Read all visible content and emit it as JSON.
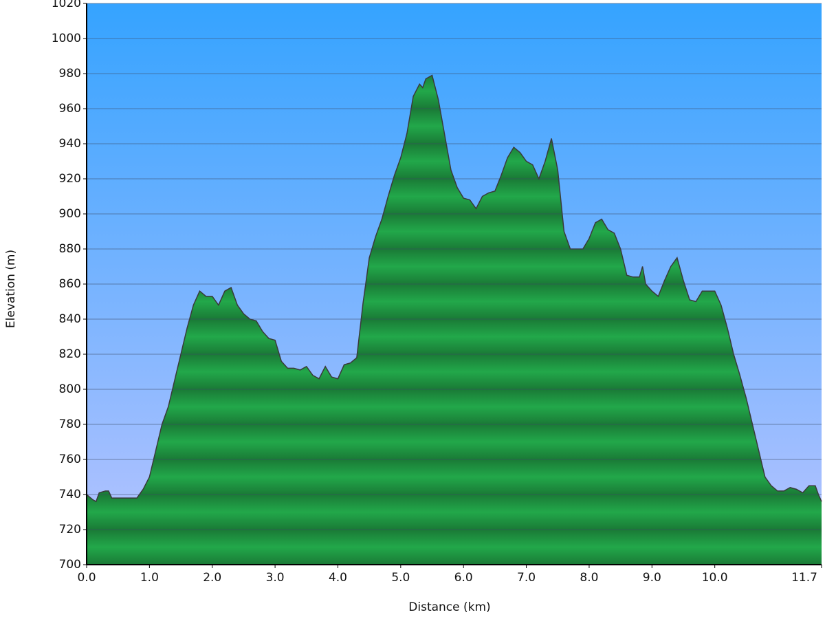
{
  "chart_data": {
    "type": "area",
    "x_label": "Distance (km)",
    "y_label": "Elevation (m)",
    "color": "#22a84a",
    "x": [
      0.0,
      0.1,
      0.15,
      0.2,
      0.3,
      0.35,
      0.4,
      0.5,
      0.6,
      0.7,
      0.8,
      0.9,
      1.0,
      1.1,
      1.2,
      1.3,
      1.4,
      1.5,
      1.6,
      1.7,
      1.8,
      1.9,
      2.0,
      2.1,
      2.2,
      2.3,
      2.4,
      2.5,
      2.6,
      2.7,
      2.8,
      2.9,
      3.0,
      3.1,
      3.2,
      3.3,
      3.4,
      3.5,
      3.6,
      3.7,
      3.8,
      3.9,
      4.0,
      4.1,
      4.2,
      4.3,
      4.4,
      4.5,
      4.6,
      4.7,
      4.8,
      4.9,
      5.0,
      5.1,
      5.2,
      5.3,
      5.35,
      5.4,
      5.5,
      5.6,
      5.7,
      5.8,
      5.9,
      6.0,
      6.1,
      6.2,
      6.3,
      6.4,
      6.5,
      6.6,
      6.7,
      6.8,
      6.9,
      7.0,
      7.1,
      7.2,
      7.3,
      7.4,
      7.5,
      7.6,
      7.7,
      7.8,
      7.9,
      8.0,
      8.1,
      8.2,
      8.3,
      8.4,
      8.5,
      8.6,
      8.7,
      8.8,
      8.85,
      8.9,
      9.0,
      9.1,
      9.2,
      9.3,
      9.4,
      9.5,
      9.6,
      9.7,
      9.8,
      9.9,
      10.0,
      10.1,
      10.2,
      10.3,
      10.4,
      10.5,
      10.6,
      10.7,
      10.8,
      10.9,
      11.0,
      11.1,
      11.2,
      11.3,
      11.4,
      11.5,
      11.6,
      11.65,
      11.7
    ],
    "values": [
      740,
      737,
      736,
      741,
      742,
      742,
      738,
      738,
      738,
      738,
      738,
      743,
      750,
      765,
      780,
      790,
      805,
      820,
      835,
      848,
      856,
      853,
      853,
      848,
      856,
      858,
      848,
      843,
      840,
      839,
      833,
      829,
      828,
      816,
      812,
      812,
      811,
      813,
      808,
      806,
      813,
      807,
      806,
      814,
      815,
      818,
      849,
      875,
      887,
      897,
      910,
      922,
      932,
      946,
      967,
      974,
      972,
      977,
      979,
      965,
      945,
      925,
      915,
      909,
      908,
      903,
      910,
      912,
      913,
      922,
      932,
      938,
      935,
      930,
      928,
      920,
      930,
      943,
      925,
      890,
      880,
      880,
      880,
      886,
      895,
      897,
      891,
      889,
      880,
      865,
      864,
      864,
      870,
      860,
      856,
      853,
      862,
      870,
      875,
      862,
      851,
      850,
      856,
      856,
      856,
      848,
      835,
      820,
      808,
      795,
      780,
      765,
      750,
      745,
      742,
      742,
      744,
      743,
      741,
      745,
      745,
      740,
      736
    ],
    "xlim": [
      0,
      11.7
    ],
    "ylim": [
      700,
      1020
    ],
    "xticks": [
      {
        "value": 0,
        "label": "0.0"
      },
      {
        "value": 1,
        "label": "1.0"
      },
      {
        "value": 2,
        "label": "2.0"
      },
      {
        "value": 3,
        "label": "3.0"
      },
      {
        "value": 4,
        "label": "4.0"
      },
      {
        "value": 5,
        "label": "5.0"
      },
      {
        "value": 6,
        "label": "6.0"
      },
      {
        "value": 7,
        "label": "7.0"
      },
      {
        "value": 8,
        "label": "8.0"
      },
      {
        "value": 9,
        "label": "9.0"
      },
      {
        "value": 10,
        "label": "10.0"
      },
      11.7
    ],
    "yticks": [
      700,
      720,
      740,
      760,
      780,
      800,
      820,
      840,
      860,
      880,
      900,
      920,
      940,
      960,
      980,
      1000,
      1020
    ],
    "grid": true
  }
}
